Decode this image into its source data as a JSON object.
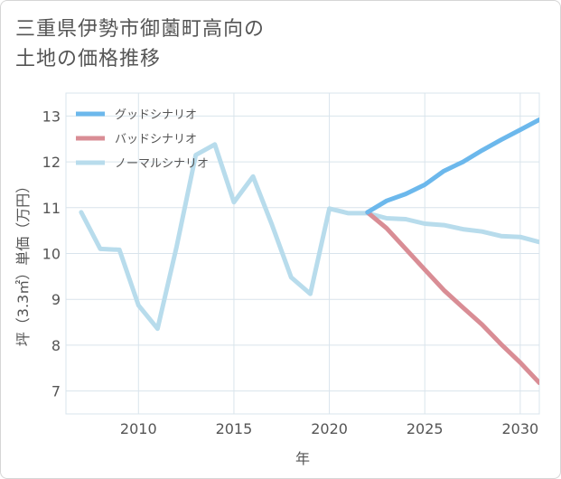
{
  "title": {
    "line1": "三重県伊勢市御薗町高向の",
    "line2": "土地の価格推移"
  },
  "chart_data": {
    "type": "line",
    "xlabel": "年",
    "ylabel": "坪（3.3㎡）単価（万円）",
    "xlim": [
      2006.2,
      2031
    ],
    "ylim": [
      6.5,
      13.5
    ],
    "xticks": [
      2010,
      2015,
      2020,
      2025,
      2030
    ],
    "yticks": [
      7,
      8,
      9,
      10,
      11,
      12,
      13
    ],
    "grid": true,
    "legend_position": "top-left",
    "series": [
      {
        "name": "グッドシナリオ",
        "color": "#6cb8ec",
        "x": [
          2022,
          2023,
          2024,
          2025,
          2026,
          2027,
          2028,
          2029,
          2030,
          2031
        ],
        "y": [
          10.9,
          11.15,
          11.3,
          11.5,
          11.8,
          12.0,
          12.25,
          12.48,
          12.7,
          12.92
        ]
      },
      {
        "name": "バッドシナリオ",
        "color": "#d98d95",
        "x": [
          2022,
          2023,
          2024,
          2025,
          2026,
          2027,
          2028,
          2029,
          2030,
          2031
        ],
        "y": [
          10.9,
          10.55,
          10.1,
          9.65,
          9.2,
          8.82,
          8.45,
          8.02,
          7.62,
          7.18
        ]
      },
      {
        "name": "ノーマルシナリオ",
        "color": "#b8dcec",
        "x": [
          2007,
          2008,
          2009,
          2010,
          2011,
          2012,
          2013,
          2014,
          2015,
          2016,
          2017,
          2018,
          2019,
          2020,
          2021,
          2022,
          2023,
          2024,
          2025,
          2026,
          2027,
          2028,
          2029,
          2030,
          2031
        ],
        "y": [
          10.9,
          10.1,
          10.08,
          8.87,
          8.36,
          10.15,
          12.15,
          12.38,
          11.12,
          11.68,
          10.62,
          9.48,
          9.12,
          10.98,
          10.88,
          10.88,
          10.77,
          10.75,
          10.65,
          10.62,
          10.53,
          10.48,
          10.38,
          10.36,
          10.25
        ]
      }
    ]
  }
}
